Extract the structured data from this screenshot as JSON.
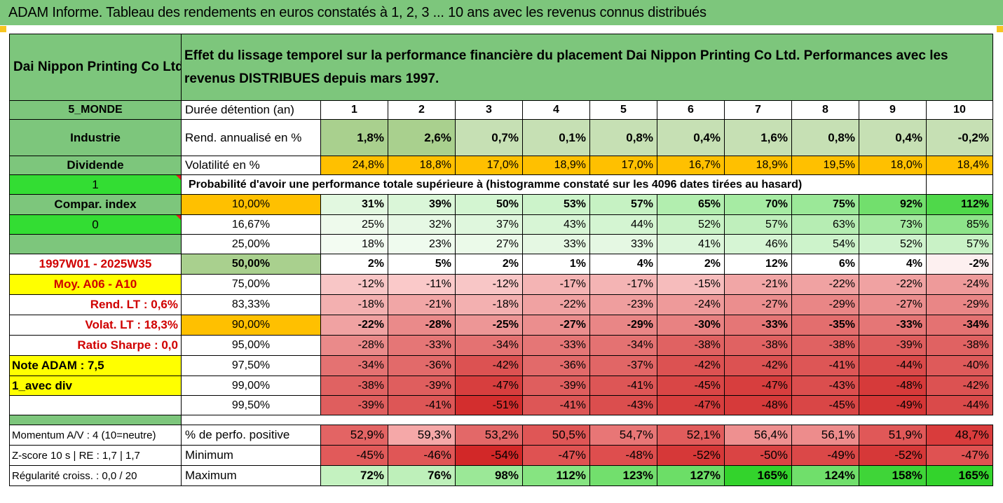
{
  "title": "ADAM Informe. Tableau des rendements en euros constatés à 1, 2, 3 ... 10 ans avec les revenus connus distribués",
  "company": "Dai Nippon Printing Co Ltd",
  "description": "Effet du lissage temporel sur la performance financière du placement Dai Nippon Printing Co Ltd. Performances avec les revenus DISTRIBUES depuis mars 1997.",
  "side": {
    "zone": "5_MONDE",
    "sector": "Industrie",
    "dividend": "Dividende",
    "flag1": "1",
    "compar": "Compar. index",
    "flag0": "0",
    "period": "1997W01 - 2025W35",
    "moy": "Moy. A06 - A10",
    "rend_lt": "Rend. LT :   0,6%",
    "volat_lt": "Volat. LT :   18,3%",
    "sharpe": "Ratio Sharpe :   0,0",
    "note": "Note ADAM : 7,5",
    "mode": "1_avec div",
    "momentum": "Momentum A/V : 4 (10=neutre)",
    "zscore": "Z-score 10 s  | RE : 1,7 | 1,7",
    "regularite": "Régularité croiss. : 0,0 / 20"
  },
  "header": {
    "duree_label": "Durée détention (an)",
    "years": [
      "1",
      "2",
      "3",
      "4",
      "5",
      "6",
      "7",
      "8",
      "9",
      "10"
    ]
  },
  "rend": {
    "label": "Rend. annualisé en %",
    "values": [
      "1,8%",
      "2,6%",
      "0,7%",
      "0,1%",
      "0,8%",
      "0,4%",
      "1,6%",
      "0,8%",
      "0,4%",
      "-0,2%"
    ]
  },
  "vol": {
    "label": "Volatilité en %",
    "values": [
      "24,8%",
      "18,8%",
      "17,0%",
      "18,9%",
      "17,0%",
      "16,7%",
      "18,9%",
      "19,5%",
      "18,0%",
      "18,4%"
    ]
  },
  "prob_title": "Probabilité d'avoir une performance totale supérieure à (histogramme constaté sur les 4096 dates tirées au hasard)",
  "prob_rows": [
    {
      "p": "10,00%",
      "values": [
        "31%",
        "39%",
        "50%",
        "53%",
        "57%",
        "65%",
        "70%",
        "75%",
        "92%",
        "112%"
      ],
      "colors": [
        "#e2f8e0",
        "#daf6d8",
        "#d3f5d1",
        "#ccf3ca",
        "#c6f2c3",
        "#b2eeaf",
        "#a6eba3",
        "#9be898",
        "#72df6d",
        "#4fd84a"
      ]
    },
    {
      "p": "16,67%",
      "values": [
        "25%",
        "32%",
        "37%",
        "43%",
        "44%",
        "52%",
        "57%",
        "63%",
        "73%",
        "85%"
      ],
      "colors": [
        "#eefaec",
        "#e6f8e4",
        "#dff7dd",
        "#d7f5d5",
        "#d4f5d2",
        "#c8f2c5",
        "#bfefbc",
        "#b6edb3",
        "#a4e9a0",
        "#8ee48a"
      ]
    },
    {
      "p": "25,00%",
      "values": [
        "18%",
        "23%",
        "27%",
        "33%",
        "33%",
        "41%",
        "46%",
        "54%",
        "52%",
        "57%"
      ],
      "colors": [
        "#f3fcf2",
        "#effbee",
        "#ebfae9",
        "#e5f8e3",
        "#e5f8e3",
        "#dcf6da",
        "#d6f5d4",
        "#cdf3cb",
        "#cff3cd",
        "#c9f2c6"
      ]
    },
    {
      "p": "50,00%",
      "values": [
        "2%",
        "5%",
        "2%",
        "1%",
        "4%",
        "2%",
        "12%",
        "6%",
        "4%",
        "-2%"
      ],
      "colors": [
        "#ffffff",
        "#ffffff",
        "#ffffff",
        "#ffffff",
        "#ffffff",
        "#ffffff",
        "#ffffff",
        "#ffffff",
        "#ffffff",
        "#fdf0f0"
      ]
    },
    {
      "p": "75,00%",
      "values": [
        "-12%",
        "-11%",
        "-12%",
        "-17%",
        "-17%",
        "-15%",
        "-21%",
        "-22%",
        "-22%",
        "-24%"
      ],
      "colors": [
        "#f8c6c6",
        "#fac9c9",
        "#f8c6c6",
        "#f4b4b4",
        "#f4b4b4",
        "#f6bcbc",
        "#f1a6a6",
        "#f0a2a2",
        "#f0a2a2",
        "#ee9a9a"
      ]
    },
    {
      "p": "83,33%",
      "values": [
        "-18%",
        "-21%",
        "-18%",
        "-22%",
        "-23%",
        "-24%",
        "-27%",
        "-29%",
        "-27%",
        "-29%"
      ],
      "colors": [
        "#f3b0b0",
        "#f1a6a6",
        "#f3b0b0",
        "#f0a2a2",
        "#ef9e9e",
        "#ee9a9a",
        "#eb8e8e",
        "#e98686",
        "#eb8e8e",
        "#e98686"
      ]
    },
    {
      "p": "90,00%",
      "values": [
        "-22%",
        "-28%",
        "-25%",
        "-27%",
        "-29%",
        "-30%",
        "-33%",
        "-35%",
        "-33%",
        "-34%"
      ],
      "colors": [
        "#f0a2a2",
        "#ea8a8a",
        "#ed9696",
        "#eb8e8e",
        "#e98686",
        "#e88282",
        "#e57676",
        "#e36e6e",
        "#e57676",
        "#e47272"
      ]
    },
    {
      "p": "95,00%",
      "values": [
        "-28%",
        "-33%",
        "-34%",
        "-33%",
        "-34%",
        "-38%",
        "-38%",
        "-38%",
        "-39%",
        "-38%"
      ],
      "colors": [
        "#ea8a8a",
        "#e57676",
        "#e47272",
        "#e57676",
        "#e47272",
        "#e06262",
        "#e06262",
        "#e06262",
        "#df5e5e",
        "#e06262"
      ]
    },
    {
      "p": "97,50%",
      "values": [
        "-34%",
        "-36%",
        "-42%",
        "-36%",
        "-37%",
        "-42%",
        "-42%",
        "-41%",
        "-44%",
        "-40%"
      ],
      "colors": [
        "#e47272",
        "#e26a6a",
        "#dc5252",
        "#e26a6a",
        "#e16666",
        "#dc5252",
        "#dc5252",
        "#dd5656",
        "#da4a4a",
        "#de5a5a"
      ]
    },
    {
      "p": "99,00%",
      "values": [
        "-38%",
        "-39%",
        "-47%",
        "-39%",
        "-41%",
        "-45%",
        "-47%",
        "-43%",
        "-48%",
        "-42%"
      ],
      "colors": [
        "#e06262",
        "#df5e5e",
        "#d73e3e",
        "#df5e5e",
        "#dd5656",
        "#d94646",
        "#d73e3e",
        "#db4e4e",
        "#d63a3a",
        "#dc5252"
      ]
    },
    {
      "p": "99,50%",
      "values": [
        "-39%",
        "-41%",
        "-51%",
        "-41%",
        "-43%",
        "-47%",
        "-48%",
        "-45%",
        "-49%",
        "-44%"
      ],
      "colors": [
        "#df5e5e",
        "#dd5656",
        "#d32e2e",
        "#dd5656",
        "#db4e4e",
        "#d73e3e",
        "#d63a3a",
        "#d94646",
        "#d53636",
        "#da4a4a"
      ]
    }
  ],
  "stats": [
    {
      "label": "% de perfo. positive",
      "values": [
        "52,9%",
        "59,3%",
        "53,2%",
        "50,5%",
        "54,7%",
        "52,1%",
        "56,4%",
        "56,1%",
        "51,9%",
        "48,7%"
      ],
      "colors": [
        "#e36464",
        "#f5a8a8",
        "#e36868",
        "#df5656",
        "#e87676",
        "#e15c5c",
        "#ee9090",
        "#ed8c8c",
        "#e05858",
        "#d93c3c"
      ]
    },
    {
      "label": "Minimum",
      "values": [
        "-45%",
        "-46%",
        "-54%",
        "-47%",
        "-48%",
        "-52%",
        "-50%",
        "-49%",
        "-52%",
        "-47%"
      ],
      "colors": [
        "#e15a5a",
        "#e05656",
        "#d22828",
        "#df5252",
        "#de4e4e",
        "#d63838",
        "#da4444",
        "#db4848",
        "#d63838",
        "#df5252"
      ]
    },
    {
      "label": "Maximum",
      "values": [
        "72%",
        "76%",
        "98%",
        "112%",
        "123%",
        "127%",
        "165%",
        "124%",
        "158%",
        "165%"
      ],
      "colors": [
        "#c4f2c0",
        "#bef0ba",
        "#9be897",
        "#86e481",
        "#72df6d",
        "#6cde67",
        "#33d32c",
        "#70df6b",
        "#3fd538",
        "#33d32c"
      ]
    }
  ],
  "colors": {
    "green_header": "#7dc67c",
    "yellow": "#ffff00",
    "orange": "#ffc000",
    "bright_green": "#33dd33",
    "red_text": "#d00000"
  }
}
